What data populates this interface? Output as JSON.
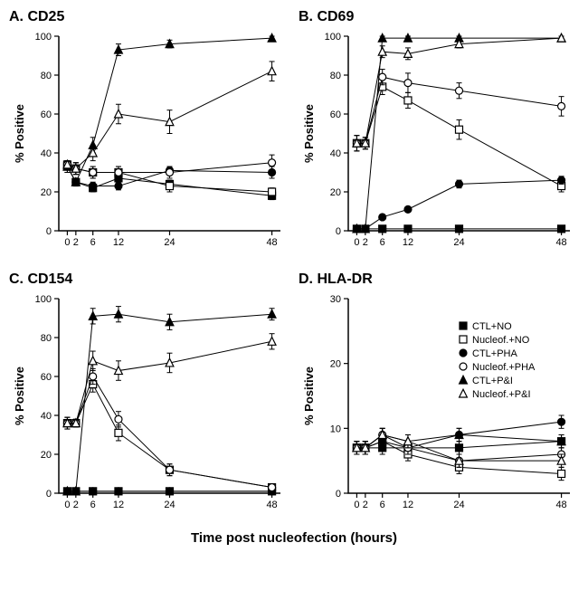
{
  "figure": {
    "xlabel": "Time post nucleofection (hours)",
    "ylabel": "% Positive",
    "label_fontsize": 13,
    "title_fontsize": 16,
    "background_color": "#ffffff",
    "axis_color": "#000000",
    "line_color": "#000000",
    "xticks": [
      0,
      2,
      6,
      12,
      24,
      48
    ],
    "xlim": [
      -2,
      50
    ],
    "marker_size": 5,
    "line_width": 1,
    "error_cap_width": 3,
    "legend_panel": "D",
    "legend": [
      {
        "key": "CTL_NO",
        "label": "CTL+NO",
        "marker": "square-filled"
      },
      {
        "key": "Nuc_NO",
        "label": "Nucleof.+NO",
        "marker": "square-open"
      },
      {
        "key": "CTL_PHA",
        "label": "CTL+PHA",
        "marker": "circle-filled"
      },
      {
        "key": "Nuc_PHA",
        "label": "Nucleof.+PHA",
        "marker": "circle-open"
      },
      {
        "key": "CTL_PI",
        "label": "CTL+P&I",
        "marker": "triangle-filled"
      },
      {
        "key": "Nuc_PI",
        "label": "Nucleof.+P&I",
        "marker": "triangle-open"
      }
    ],
    "panels": {
      "A": {
        "title": "A. CD25",
        "ylim": [
          0,
          100
        ],
        "ytick_step": 20,
        "series": {
          "CTL_NO": {
            "x": [
              0,
              2,
              6,
              12,
              24,
              48
            ],
            "y": [
              33,
              25,
              22,
              27,
              24,
              18
            ],
            "err": [
              3,
              2,
              2,
              2,
              2,
              2
            ]
          },
          "Nuc_NO": {
            "x": [
              0,
              2,
              6,
              12,
              24,
              48
            ],
            "y": [
              34,
              32,
              30,
              30,
              23,
              20
            ],
            "err": [
              2,
              3,
              3,
              3,
              3,
              2
            ]
          },
          "CTL_PHA": {
            "x": [
              0,
              2,
              6,
              12,
              24,
              48
            ],
            "y": [
              33,
              25,
              23,
              23,
              31,
              30
            ],
            "err": [
              3,
              2,
              2,
              2,
              2,
              3
            ]
          },
          "Nuc_PHA": {
            "x": [
              0,
              2,
              6,
              12,
              24,
              48
            ],
            "y": [
              34,
              32,
              30,
              30,
              30,
              35
            ],
            "err": [
              2,
              3,
              3,
              3,
              3,
              4
            ]
          },
          "CTL_PI": {
            "x": [
              0,
              2,
              6,
              12,
              24,
              48
            ],
            "y": [
              33,
              25,
              44,
              93,
              96,
              99
            ],
            "err": [
              3,
              2,
              4,
              3,
              2,
              1
            ]
          },
          "Nuc_PI": {
            "x": [
              0,
              2,
              6,
              12,
              24,
              48
            ],
            "y": [
              34,
              32,
              40,
              60,
              56,
              82
            ],
            "err": [
              2,
              3,
              4,
              5,
              6,
              5
            ]
          }
        }
      },
      "B": {
        "title": "B. CD69",
        "ylim": [
          0,
          100
        ],
        "ytick_step": 20,
        "series": {
          "CTL_NO": {
            "x": [
              0,
              2,
              6,
              12,
              24,
              48
            ],
            "y": [
              1,
              1,
              1,
              1,
              1,
              1
            ],
            "err": [
              0,
              0,
              0,
              0,
              0,
              0
            ]
          },
          "Nuc_NO": {
            "x": [
              0,
              2,
              6,
              12,
              24,
              48
            ],
            "y": [
              45,
              45,
              74,
              67,
              52,
              23
            ],
            "err": [
              4,
              3,
              4,
              4,
              5,
              3
            ]
          },
          "CTL_PHA": {
            "x": [
              0,
              2,
              6,
              12,
              24,
              48
            ],
            "y": [
              1,
              1,
              7,
              11,
              24,
              26
            ],
            "err": [
              0,
              0,
              1,
              1,
              2,
              2
            ]
          },
          "Nuc_PHA": {
            "x": [
              0,
              2,
              6,
              12,
              24,
              48
            ],
            "y": [
              45,
              45,
              79,
              76,
              72,
              64
            ],
            "err": [
              4,
              3,
              4,
              5,
              4,
              5
            ]
          },
          "CTL_PI": {
            "x": [
              0,
              2,
              6,
              12,
              24,
              48
            ],
            "y": [
              1,
              1,
              99,
              99,
              99,
              99
            ],
            "err": [
              0,
              0,
              1,
              1,
              1,
              1
            ]
          },
          "Nuc_PI": {
            "x": [
              0,
              2,
              6,
              12,
              24,
              48
            ],
            "y": [
              45,
              45,
              92,
              91,
              96,
              99
            ],
            "err": [
              4,
              3,
              3,
              3,
              2,
              1
            ]
          }
        }
      },
      "C": {
        "title": "C. CD154",
        "ylim": [
          0,
          100
        ],
        "ytick_step": 20,
        "series": {
          "CTL_NO": {
            "x": [
              0,
              2,
              6,
              12,
              24,
              48
            ],
            "y": [
              1,
              1,
              1,
              1,
              1,
              1
            ],
            "err": [
              0,
              0,
              0,
              0,
              0,
              0
            ]
          },
          "Nuc_NO": {
            "x": [
              0,
              2,
              6,
              12,
              24,
              48
            ],
            "y": [
              36,
              36,
              56,
              31,
              12,
              3
            ],
            "err": [
              3,
              2,
              4,
              4,
              3,
              1
            ]
          },
          "CTL_PHA": {
            "x": [
              0,
              2,
              6,
              12,
              24,
              48
            ],
            "y": [
              1,
              1,
              1,
              1,
              1,
              1
            ],
            "err": [
              0,
              0,
              0,
              0,
              0,
              0
            ]
          },
          "Nuc_PHA": {
            "x": [
              0,
              2,
              6,
              12,
              24,
              48
            ],
            "y": [
              36,
              36,
              60,
              38,
              12,
              3
            ],
            "err": [
              3,
              2,
              4,
              4,
              3,
              1
            ]
          },
          "CTL_PI": {
            "x": [
              0,
              2,
              6,
              12,
              24,
              48
            ],
            "y": [
              1,
              1,
              91,
              92,
              88,
              92
            ],
            "err": [
              0,
              0,
              4,
              4,
              4,
              3
            ]
          },
          "Nuc_PI": {
            "x": [
              0,
              2,
              6,
              12,
              24,
              48
            ],
            "y": [
              36,
              36,
              68,
              63,
              67,
              78
            ],
            "err": [
              3,
              2,
              5,
              5,
              5,
              4
            ]
          }
        }
      },
      "D": {
        "title": "D. HLA-DR",
        "ylim": [
          0,
          30
        ],
        "ytick_step": 10,
        "series": {
          "CTL_NO": {
            "x": [
              0,
              2,
              6,
              12,
              24,
              48
            ],
            "y": [
              7,
              7,
              7,
              7,
              7,
              8
            ],
            "err": [
              1,
              1,
              1,
              1,
              1,
              1
            ]
          },
          "Nuc_NO": {
            "x": [
              0,
              2,
              6,
              12,
              24,
              48
            ],
            "y": [
              7,
              7,
              8,
              6,
              4,
              3
            ],
            "err": [
              1,
              1,
              1,
              1,
              1,
              1
            ]
          },
          "CTL_PHA": {
            "x": [
              0,
              2,
              6,
              12,
              24,
              48
            ],
            "y": [
              7,
              7,
              8,
              7,
              9,
              11
            ],
            "err": [
              1,
              1,
              1,
              1,
              1,
              1
            ]
          },
          "Nuc_PHA": {
            "x": [
              0,
              2,
              6,
              12,
              24,
              48
            ],
            "y": [
              7,
              7,
              9,
              7,
              5,
              6
            ],
            "err": [
              1,
              1,
              1,
              1,
              1,
              1
            ]
          },
          "CTL_PI": {
            "x": [
              0,
              2,
              6,
              12,
              24,
              48
            ],
            "y": [
              7,
              7,
              9,
              8,
              9,
              8
            ],
            "err": [
              1,
              1,
              1,
              1,
              1,
              1
            ]
          },
          "Nuc_PI": {
            "x": [
              0,
              2,
              6,
              12,
              24,
              48
            ],
            "y": [
              7,
              7,
              9,
              8,
              5,
              5
            ],
            "err": [
              1,
              1,
              1,
              1,
              1,
              1
            ]
          }
        }
      }
    }
  }
}
